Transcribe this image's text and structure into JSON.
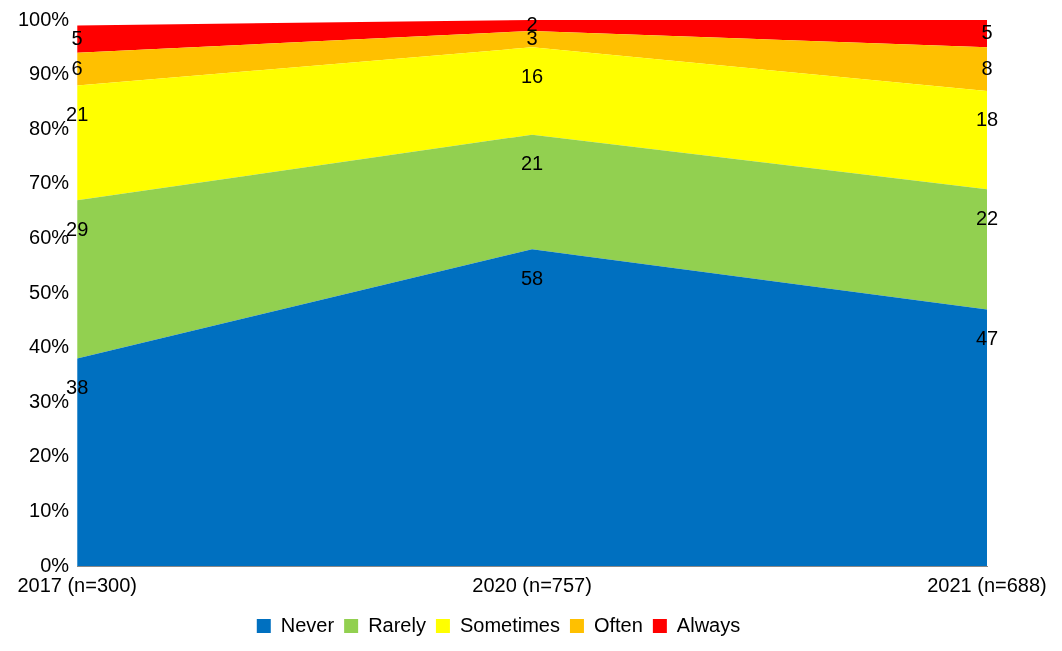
{
  "chart_data": {
    "type": "area",
    "stacked": true,
    "categories": [
      "2017 (n=300)",
      "2020 (n=757)",
      "2021 (n=688)"
    ],
    "series": [
      {
        "name": "Never",
        "color": "#0070c0",
        "values": [
          38,
          58,
          47
        ]
      },
      {
        "name": "Rarely",
        "color": "#92d050",
        "values": [
          29,
          21,
          22
        ]
      },
      {
        "name": "Sometimes",
        "color": "#ffff00",
        "values": [
          21,
          16,
          18
        ]
      },
      {
        "name": "Often",
        "color": "#ffc000",
        "values": [
          6,
          3,
          8
        ]
      },
      {
        "name": "Always",
        "color": "#ff0000",
        "values": [
          5,
          2,
          5
        ]
      }
    ],
    "ylim": [
      0,
      100
    ],
    "yticks": [
      {
        "value": 0,
        "label": "0%"
      },
      {
        "value": 10,
        "label": "10%"
      },
      {
        "value": 20,
        "label": "20%"
      },
      {
        "value": 30,
        "label": "30%"
      },
      {
        "value": 40,
        "label": "40%"
      },
      {
        "value": 50,
        "label": "50%"
      },
      {
        "value": 60,
        "label": "60%"
      },
      {
        "value": 70,
        "label": "70%"
      },
      {
        "value": 80,
        "label": "80%"
      },
      {
        "value": 90,
        "label": "90%"
      },
      {
        "value": 100,
        "label": "100%"
      }
    ],
    "grid": false,
    "legend": "bottom",
    "data_labels": true
  }
}
